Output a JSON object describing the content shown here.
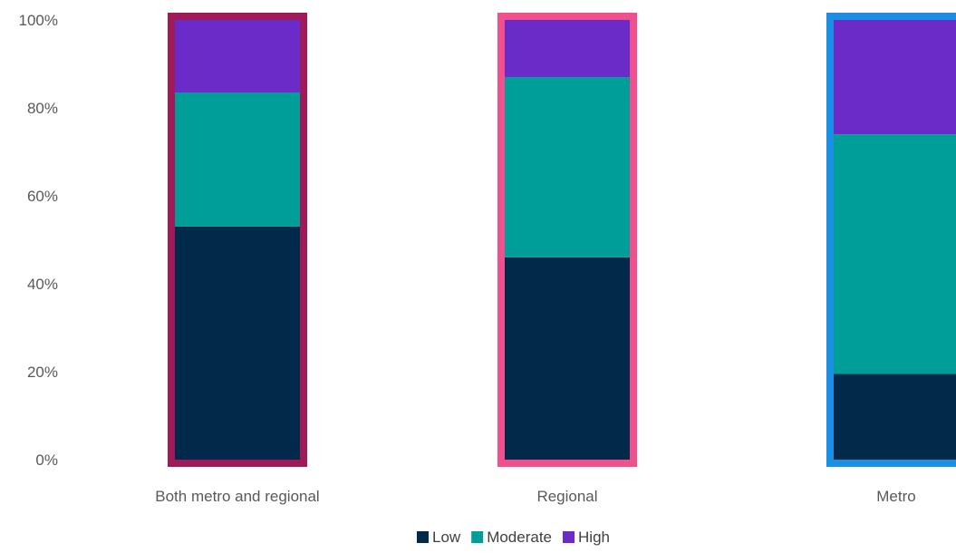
{
  "chart_data": {
    "type": "bar",
    "stacked": true,
    "normalized": true,
    "categories": [
      "Both metro and regional",
      "Regional",
      "Metro"
    ],
    "series": [
      {
        "name": "Low",
        "color": "#012A4A",
        "values": [
          53,
          46,
          19.5
        ]
      },
      {
        "name": "Moderate",
        "color": "#009E99",
        "values": [
          30.5,
          41,
          54.5
        ]
      },
      {
        "name": "High",
        "color": "#6A2BC8",
        "values": [
          16.5,
          13,
          26
        ]
      }
    ],
    "category_outline_colors": [
      "#9E1A58",
      "#F0508E",
      "#1B8FE4"
    ],
    "yticks": [
      "0%",
      "20%",
      "40%",
      "60%",
      "80%",
      "100%"
    ],
    "ylim": [
      0,
      100
    ],
    "grid": false,
    "legend_position": "bottom",
    "title": "",
    "xlabel": "",
    "ylabel": ""
  }
}
